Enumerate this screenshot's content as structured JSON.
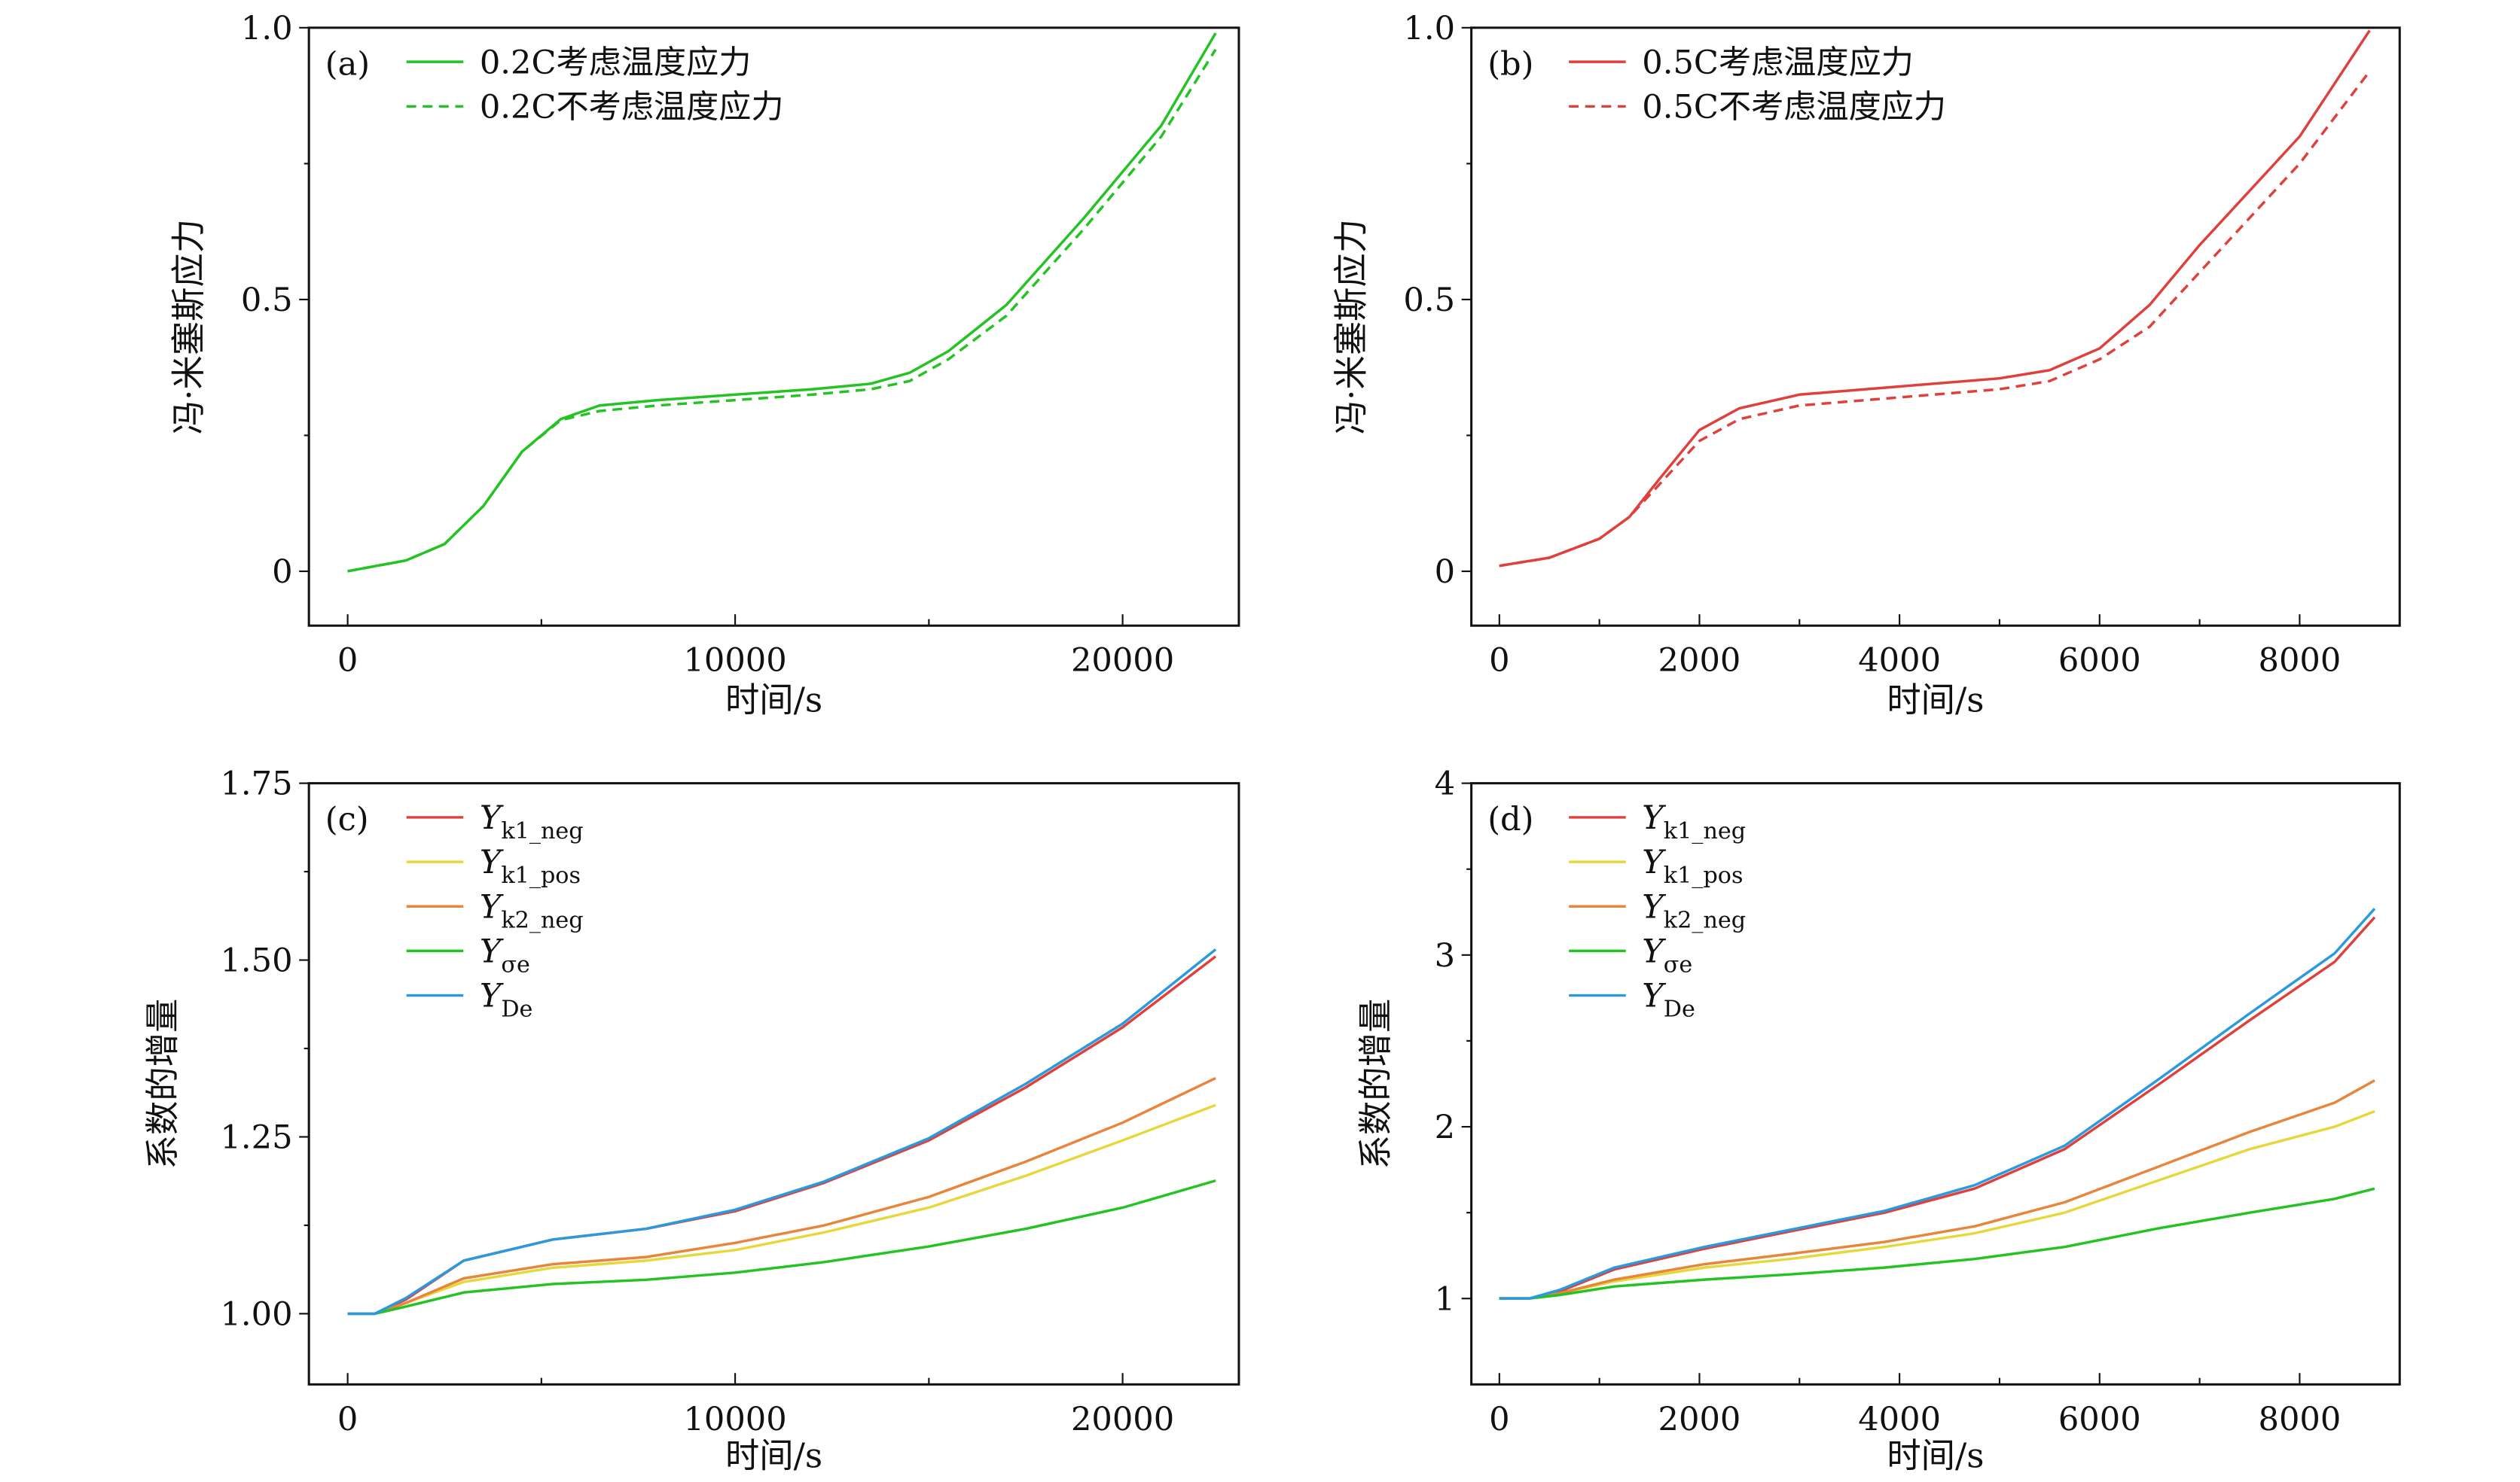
{
  "chart_data": [
    {
      "panel": "(a)",
      "type": "line",
      "xlabel": "时间/s",
      "ylabel": "冯·米塞斯应力",
      "xlim": [
        -1000,
        23000
      ],
      "ylim": [
        -0.1,
        1.0
      ],
      "xticks": [
        0,
        10000,
        20000
      ],
      "xtick_labels": [
        "0",
        "10000",
        "20000"
      ],
      "xminor": [
        5000,
        15000
      ],
      "yticks": [
        0,
        0.5,
        1.0
      ],
      "ytick_labels": [
        "0",
        "0.5",
        "1.0"
      ],
      "yminor": [
        0.25,
        0.75
      ],
      "legend_position": "top-left",
      "series": [
        {
          "label": "0.2C考虑温度应力",
          "color": "#22c322",
          "dashed": false,
          "x": [
            0,
            1500,
            2500,
            3500,
            4500,
            5500,
            6500,
            8000,
            10000,
            12000,
            13500,
            14500,
            15500,
            17000,
            19000,
            21000,
            22400
          ],
          "y": [
            0,
            0.02,
            0.05,
            0.12,
            0.22,
            0.28,
            0.305,
            0.315,
            0.325,
            0.335,
            0.345,
            0.365,
            0.405,
            0.49,
            0.65,
            0.82,
            0.99
          ]
        },
        {
          "label": "0.2C不考虑温度应力",
          "color": "#22c322",
          "dashed": true,
          "x": [
            0,
            1500,
            2500,
            3500,
            4500,
            5500,
            6500,
            8000,
            10000,
            12000,
            13500,
            14500,
            15500,
            17000,
            19000,
            21000,
            22400
          ],
          "y": [
            0,
            0.02,
            0.05,
            0.12,
            0.22,
            0.278,
            0.295,
            0.305,
            0.315,
            0.325,
            0.335,
            0.35,
            0.39,
            0.47,
            0.63,
            0.8,
            0.96
          ]
        }
      ]
    },
    {
      "panel": "(b)",
      "type": "line",
      "xlabel": "时间/s",
      "ylabel": "冯·米塞斯应力",
      "xlim": [
        -280,
        9000
      ],
      "ylim": [
        -0.1,
        1.0
      ],
      "xticks": [
        0,
        2000,
        4000,
        6000,
        8000
      ],
      "xtick_labels": [
        "0",
        "2000",
        "4000",
        "6000",
        "8000"
      ],
      "xminor": [
        1000,
        3000,
        5000,
        7000
      ],
      "yticks": [
        0,
        0.5,
        1.0
      ],
      "ytick_labels": [
        "0",
        "0.5",
        "1.0"
      ],
      "yminor": [
        0.25,
        0.75
      ],
      "legend_position": "top-left",
      "series": [
        {
          "label": "0.5C考虑温度应力",
          "color": "#e0403c",
          "dashed": false,
          "x": [
            0,
            500,
            1000,
            1300,
            1600,
            2000,
            2400,
            3000,
            4000,
            5000,
            5500,
            6000,
            6500,
            7000,
            8000,
            8700
          ],
          "y": [
            0.01,
            0.025,
            0.06,
            0.1,
            0.17,
            0.26,
            0.3,
            0.325,
            0.34,
            0.355,
            0.37,
            0.41,
            0.49,
            0.6,
            0.8,
            0.995
          ]
        },
        {
          "label": "0.5C不考虑温度应力",
          "color": "#e0403c",
          "dashed": true,
          "x": [
            0,
            500,
            1000,
            1300,
            1600,
            2000,
            2400,
            3000,
            4000,
            5000,
            5500,
            6000,
            6500,
            7000,
            8000,
            8700
          ],
          "y": [
            0.01,
            0.025,
            0.06,
            0.1,
            0.16,
            0.24,
            0.28,
            0.305,
            0.32,
            0.335,
            0.35,
            0.39,
            0.45,
            0.55,
            0.75,
            0.92
          ]
        }
      ]
    },
    {
      "panel": "(c)",
      "type": "line",
      "xlabel": "时间/s",
      "ylabel": "系数的增量",
      "xlim": [
        -1000,
        23000
      ],
      "ylim": [
        0.9,
        1.75
      ],
      "xticks": [
        0,
        10000,
        20000
      ],
      "xtick_labels": [
        "0",
        "10000",
        "20000"
      ],
      "xminor": [
        5000,
        15000
      ],
      "yticks": [
        1.0,
        1.25,
        1.5,
        1.75
      ],
      "ytick_labels": [
        "1.00",
        "1.25",
        "1.50",
        "1.75"
      ],
      "yminor": [
        1.125,
        1.375,
        1.625
      ],
      "legend_position": "top-left",
      "series": [
        {
          "label": "Y",
          "sub": "k1_neg",
          "color": "#e0403c",
          "dashed": false,
          "x": [
            0,
            700,
            1500,
            3000,
            5300,
            7700,
            10000,
            12300,
            15000,
            17500,
            20000,
            22400
          ],
          "y": [
            1,
            1,
            1.02,
            1.075,
            1.105,
            1.12,
            1.145,
            1.185,
            1.245,
            1.32,
            1.405,
            1.505
          ]
        },
        {
          "label": "Y",
          "sub": "k1_pos",
          "color": "#e6d83c",
          "dashed": false,
          "x": [
            0,
            700,
            1500,
            3000,
            5300,
            7700,
            10000,
            12300,
            15000,
            17500,
            20000,
            22400
          ],
          "y": [
            1,
            1,
            1.015,
            1.045,
            1.065,
            1.075,
            1.09,
            1.115,
            1.15,
            1.195,
            1.245,
            1.295
          ]
        },
        {
          "label": "Y",
          "sub": "k2_neg",
          "color": "#e8853a",
          "dashed": false,
          "x": [
            0,
            700,
            1500,
            3000,
            5300,
            7700,
            10000,
            12300,
            15000,
            17500,
            20000,
            22400
          ],
          "y": [
            1,
            1,
            1.015,
            1.05,
            1.07,
            1.08,
            1.1,
            1.125,
            1.165,
            1.215,
            1.27,
            1.333
          ]
        },
        {
          "label": "Y",
          "sub": "σe",
          "color": "#22c322",
          "dashed": false,
          "x": [
            0,
            700,
            1500,
            3000,
            5300,
            7700,
            10000,
            12300,
            15000,
            17500,
            20000,
            22400
          ],
          "y": [
            1,
            1,
            1.01,
            1.03,
            1.042,
            1.048,
            1.058,
            1.073,
            1.095,
            1.12,
            1.15,
            1.188
          ]
        },
        {
          "label": "Y",
          "sub": "De",
          "color": "#2a9ae0",
          "dashed": false,
          "x": [
            0,
            700,
            1500,
            3000,
            5300,
            7700,
            10000,
            12300,
            15000,
            17500,
            20000,
            22400
          ],
          "y": [
            1,
            1,
            1.022,
            1.075,
            1.105,
            1.12,
            1.147,
            1.187,
            1.248,
            1.325,
            1.41,
            1.515
          ]
        }
      ]
    },
    {
      "panel": "(d)",
      "type": "line",
      "xlabel": "时间/s",
      "ylabel": "系数的增量",
      "xlim": [
        -280,
        9000
      ],
      "ylim": [
        0.5,
        4
      ],
      "xticks": [
        0,
        2000,
        4000,
        6000,
        8000
      ],
      "xtick_labels": [
        "0",
        "2000",
        "4000",
        "6000",
        "8000"
      ],
      "xminor": [
        1000,
        3000,
        5000,
        7000
      ],
      "yticks": [
        1,
        2,
        3,
        4
      ],
      "ytick_labels": [
        "1",
        "2",
        "3",
        "4"
      ],
      "yminor": [
        1.5,
        2.5,
        3.5
      ],
      "legend_position": "top-left",
      "series": [
        {
          "label": "Y",
          "sub": "k1_neg",
          "color": "#e0403c",
          "dashed": false,
          "x": [
            0,
            300,
            600,
            1150,
            2050,
            2900,
            3850,
            4750,
            5650,
            6600,
            7500,
            8350,
            8750
          ],
          "y": [
            1,
            1,
            1.04,
            1.17,
            1.29,
            1.39,
            1.5,
            1.64,
            1.87,
            2.25,
            2.62,
            2.96,
            3.22
          ]
        },
        {
          "label": "Y",
          "sub": "k1_pos",
          "color": "#e6d83c",
          "dashed": false,
          "x": [
            0,
            300,
            600,
            1150,
            2050,
            2900,
            3850,
            4750,
            5650,
            6600,
            7500,
            8350,
            8750
          ],
          "y": [
            1,
            1,
            1.03,
            1.1,
            1.18,
            1.23,
            1.3,
            1.38,
            1.5,
            1.69,
            1.87,
            2.0,
            2.09
          ]
        },
        {
          "label": "Y",
          "sub": "k2_neg",
          "color": "#e8853a",
          "dashed": false,
          "x": [
            0,
            300,
            600,
            1150,
            2050,
            2900,
            3850,
            4750,
            5650,
            6600,
            7500,
            8350,
            8750
          ],
          "y": [
            1,
            1,
            1.03,
            1.11,
            1.2,
            1.26,
            1.33,
            1.42,
            1.56,
            1.77,
            1.97,
            2.14,
            2.27
          ]
        },
        {
          "label": "Y",
          "sub": "σe",
          "color": "#22c322",
          "dashed": false,
          "x": [
            0,
            300,
            600,
            1150,
            2050,
            2900,
            3850,
            4750,
            5650,
            6600,
            7500,
            8350,
            8750
          ],
          "y": [
            1,
            1,
            1.02,
            1.07,
            1.11,
            1.14,
            1.18,
            1.23,
            1.3,
            1.41,
            1.5,
            1.58,
            1.64
          ]
        },
        {
          "label": "Y",
          "sub": "De",
          "color": "#2a9ae0",
          "dashed": false,
          "x": [
            0,
            300,
            600,
            1150,
            2050,
            2900,
            3850,
            4750,
            5650,
            6600,
            7500,
            8350,
            8750
          ],
          "y": [
            1,
            1,
            1.05,
            1.18,
            1.3,
            1.4,
            1.51,
            1.66,
            1.89,
            2.28,
            2.66,
            3.01,
            3.27
          ]
        }
      ]
    }
  ]
}
